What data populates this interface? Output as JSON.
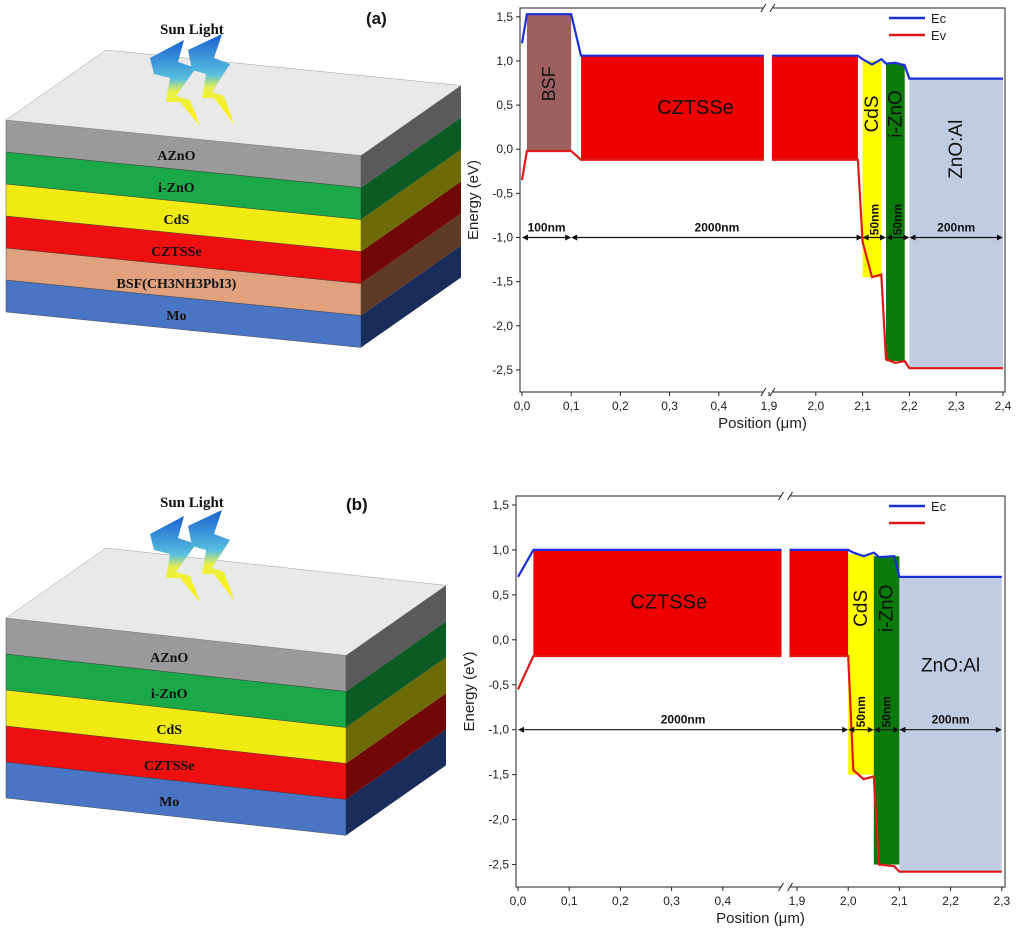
{
  "panel_a": {
    "label": "(a)",
    "sun_label": "Sun Light",
    "stack": [
      {
        "name": "AZnO",
        "top": "#e9e9e9",
        "front": "#9a9a9a",
        "side": "#5a5a5a"
      },
      {
        "name": "i-ZnO",
        "top": "#21b24a",
        "front": "#1aa848",
        "side": "#0c5a24"
      },
      {
        "name": "CdS",
        "top": "#f4ee1a",
        "front": "#f0ea12",
        "side": "#6d6b08"
      },
      {
        "name": "CZTSSe",
        "top": "#ff2020",
        "front": "#ee1010",
        "side": "#700808"
      },
      {
        "name": "BSF(CH3NH3PbI3)",
        "top": "#e9b08e",
        "front": "#dfa17e",
        "side": "#5f3b27"
      },
      {
        "name": "Mo",
        "top": "#5f86cf",
        "front": "#4a74c4",
        "side": "#1a2c5a"
      }
    ]
  },
  "panel_b": {
    "label": "(b)",
    "sun_label": "Sun Light",
    "stack": [
      {
        "name": "AZnO",
        "top": "#e9e9e9",
        "front": "#9a9a9a",
        "side": "#5a5a5a"
      },
      {
        "name": "i-ZnO",
        "top": "#21b24a",
        "front": "#1aa848",
        "side": "#0c5a24"
      },
      {
        "name": "CdS",
        "top": "#f4ee1a",
        "front": "#f0ea12",
        "side": "#6d6b08"
      },
      {
        "name": "CZTSSe",
        "top": "#ff2020",
        "front": "#ee1010",
        "side": "#700808"
      },
      {
        "name": "Mo",
        "top": "#5f86cf",
        "front": "#4a74c4",
        "side": "#1a2c5a"
      }
    ]
  },
  "chart_a": {
    "xlabel": "Position (μm)",
    "ylabel": "Energy (eV)",
    "ylim": [
      -2.75,
      1.6
    ],
    "yticks": [
      "1,5",
      "1,0",
      "0,5",
      "0,0",
      "-0,5",
      "-1,0",
      "-1,5",
      "-2,0",
      "-2,5"
    ],
    "ytick_values": [
      1.5,
      1.0,
      0.5,
      0.0,
      -0.5,
      -1.0,
      -1.5,
      -2.0,
      -2.5
    ],
    "xticks": [
      "0,0",
      "0,1",
      "0,2",
      "0,3",
      "0,4",
      "1,9",
      "2,0",
      "2,1",
      "2,2",
      "2,3",
      "2,4"
    ],
    "legend": [
      {
        "label": "Ec",
        "color": "#1a2fd8"
      },
      {
        "label": "Ev",
        "color": "#e01818"
      }
    ],
    "regions": [
      {
        "label": "BSF",
        "color": "#9c6060"
      },
      {
        "label": "CZTSSe",
        "color": "#ee0000"
      },
      {
        "label": "CdS",
        "color": "#ffff00"
      },
      {
        "label": "i-ZnO",
        "color": "#0a7a0a"
      },
      {
        "label": "ZnO:Al",
        "color": "#c0cce2"
      }
    ],
    "thickness_labels": [
      "100nm",
      "2000nm",
      "50nm",
      "50nm",
      "200nm"
    ],
    "ec_points": [
      [
        0.0,
        1.2
      ],
      [
        0.01,
        1.53
      ],
      [
        0.1,
        1.53
      ],
      [
        0.12,
        1.06
      ],
      [
        0.45,
        1.06
      ],
      [
        1.95,
        1.06
      ],
      [
        2.09,
        1.06
      ],
      [
        2.1,
        1.02
      ],
      [
        2.12,
        0.96
      ],
      [
        2.14,
        1.02
      ],
      [
        2.15,
        0.97
      ],
      [
        2.17,
        0.98
      ],
      [
        2.19,
        0.95
      ],
      [
        2.2,
        0.8
      ],
      [
        2.4,
        0.8
      ]
    ],
    "ev_points": [
      [
        0.0,
        -0.35
      ],
      [
        0.01,
        -0.02
      ],
      [
        0.1,
        -0.02
      ],
      [
        0.12,
        -0.12
      ],
      [
        0.45,
        -0.12
      ],
      [
        1.95,
        -0.12
      ],
      [
        2.09,
        -0.12
      ],
      [
        2.1,
        -1.05
      ],
      [
        2.12,
        -1.45
      ],
      [
        2.14,
        -1.42
      ],
      [
        2.15,
        -2.38
      ],
      [
        2.17,
        -2.42
      ],
      [
        2.19,
        -2.4
      ],
      [
        2.2,
        -2.48
      ],
      [
        2.4,
        -2.48
      ]
    ]
  },
  "chart_b": {
    "xlabel": "Position (μm)",
    "ylabel": "Energy (eV)",
    "ylim": [
      -2.75,
      1.6
    ],
    "yticks": [
      "1,5",
      "1,0",
      "0,5",
      "0,0",
      "-0,5",
      "-1,0",
      "-1,5",
      "-2,0",
      "-2,5"
    ],
    "ytick_values": [
      1.5,
      1.0,
      0.5,
      0.0,
      -0.5,
      -1.0,
      -1.5,
      -2.0,
      -2.5
    ],
    "xticks": [
      "0,0",
      "0,1",
      "0,2",
      "0,3",
      "0,4",
      "1,9",
      "2,0",
      "2,1",
      "2,2",
      "2,3"
    ],
    "legend": [
      {
        "label": "Ec",
        "color": "#1a2fd8"
      },
      {
        "label": "",
        "color": "#e01818"
      }
    ],
    "regions": [
      {
        "label": "CZTSSe",
        "color": "#ee0000"
      },
      {
        "label": "CdS",
        "color": "#ffff00"
      },
      {
        "label": "i-ZnO",
        "color": "#0a7a0a"
      },
      {
        "label": "ZnO:Al",
        "color": "#c0cce2"
      }
    ],
    "thickness_labels": [
      "2000nm",
      "50nm",
      "50nm",
      "200nm"
    ],
    "ec_points": [
      [
        0.0,
        0.7
      ],
      [
        0.03,
        1.0
      ],
      [
        0.45,
        1.0
      ],
      [
        1.95,
        1.0
      ],
      [
        2.0,
        1.0
      ],
      [
        2.01,
        0.97
      ],
      [
        2.03,
        0.93
      ],
      [
        2.05,
        0.97
      ],
      [
        2.06,
        0.92
      ],
      [
        2.09,
        0.93
      ],
      [
        2.1,
        0.7
      ],
      [
        2.3,
        0.7
      ]
    ],
    "ev_points": [
      [
        0.0,
        -0.55
      ],
      [
        0.03,
        -0.18
      ],
      [
        0.45,
        -0.18
      ],
      [
        1.95,
        -0.18
      ],
      [
        2.0,
        -0.18
      ],
      [
        2.01,
        -1.45
      ],
      [
        2.03,
        -1.55
      ],
      [
        2.05,
        -1.52
      ],
      [
        2.06,
        -2.5
      ],
      [
        2.09,
        -2.52
      ],
      [
        2.1,
        -2.58
      ],
      [
        2.3,
        -2.58
      ]
    ]
  }
}
